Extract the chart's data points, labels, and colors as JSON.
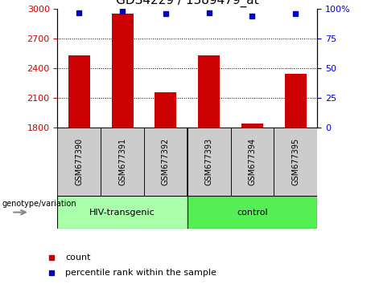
{
  "title": "GDS4229 / 1389479_at",
  "samples": [
    "GSM677390",
    "GSM677391",
    "GSM677392",
    "GSM677393",
    "GSM677394",
    "GSM677395"
  ],
  "bar_values": [
    2530,
    2950,
    2160,
    2530,
    1845,
    2340
  ],
  "percentile_values": [
    96.5,
    97.5,
    95.5,
    96.5,
    93.5,
    95.5
  ],
  "ylim_left": [
    1800,
    3000
  ],
  "ylim_right": [
    0,
    100
  ],
  "yticks_left": [
    1800,
    2100,
    2400,
    2700,
    3000
  ],
  "yticks_right": [
    0,
    25,
    50,
    75,
    100
  ],
  "bar_color": "#cc0000",
  "dot_color": "#0000cc",
  "grid_color": "#000000",
  "group1_label": "HIV-transgenic",
  "group2_label": "control",
  "group1_color": "#aaffaa",
  "group2_color": "#55ee55",
  "sample_bg_color": "#cccccc",
  "legend_count_label": "count",
  "legend_pct_label": "percentile rank within the sample",
  "genotype_label": "genotype/variation",
  "title_fontsize": 11,
  "tick_fontsize": 8,
  "sample_fontsize": 7,
  "group_fontsize": 8,
  "legend_fontsize": 8
}
